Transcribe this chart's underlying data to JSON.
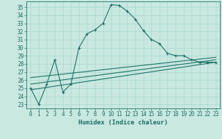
{
  "xlabel": "Humidex (Indice chaleur)",
  "bg_color": "#c8e8e0",
  "grid_color": "#b0d8d0",
  "line_color": "#1a6e64",
  "xlim": [
    -0.5,
    23.5
  ],
  "ylim": [
    22.5,
    35.7
  ],
  "yticks": [
    23,
    24,
    25,
    26,
    27,
    28,
    29,
    30,
    31,
    32,
    33,
    34,
    35
  ],
  "xticks": [
    0,
    1,
    2,
    3,
    4,
    5,
    6,
    7,
    8,
    9,
    10,
    11,
    12,
    13,
    14,
    15,
    16,
    17,
    18,
    19,
    20,
    21,
    22,
    23
  ],
  "main_x": [
    0,
    1,
    2,
    3,
    4,
    5,
    6,
    7,
    8,
    9,
    10,
    11,
    12,
    13,
    14,
    15,
    16,
    17,
    18,
    19,
    20,
    21,
    22,
    23
  ],
  "main_y": [
    25.0,
    23.0,
    25.5,
    28.5,
    24.5,
    25.5,
    30.0,
    31.7,
    32.2,
    33.0,
    35.3,
    35.2,
    34.5,
    33.5,
    32.1,
    31.0,
    30.5,
    29.3,
    29.0,
    29.0,
    28.5,
    28.2,
    28.2,
    28.2
  ],
  "line1_x": [
    0,
    23
  ],
  "line1_y": [
    24.8,
    28.2
  ],
  "line2_x": [
    0,
    23
  ],
  "line2_y": [
    25.5,
    28.5
  ],
  "line3_x": [
    0,
    23
  ],
  "line3_y": [
    26.3,
    28.8
  ],
  "tick_fontsize": 5.5,
  "xlabel_fontsize": 6.5
}
